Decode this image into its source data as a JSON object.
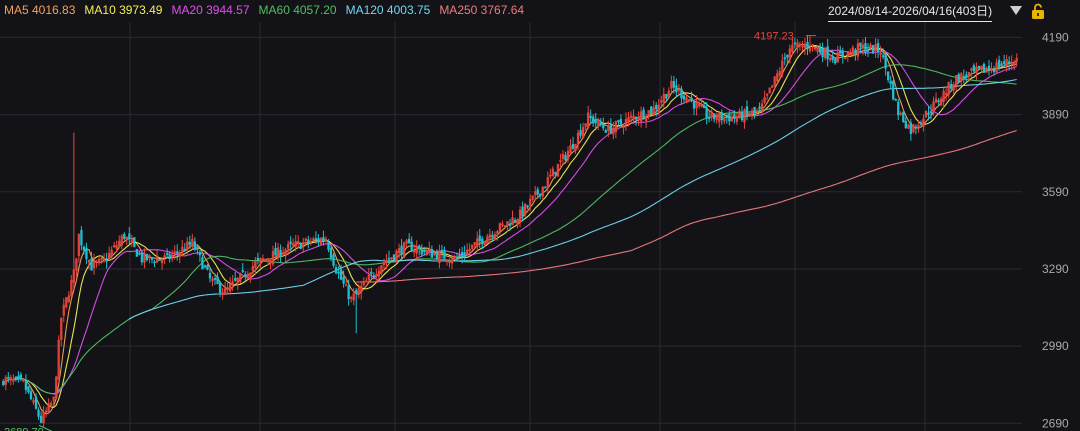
{
  "legend": [
    {
      "label": "MA5",
      "value": "4016.83",
      "color": "#f5a05a"
    },
    {
      "label": "MA10",
      "value": "3973.49",
      "color": "#f2ee5a"
    },
    {
      "label": "MA20",
      "value": "3944.57",
      "color": "#e04ef0"
    },
    {
      "label": "MA60",
      "value": "4057.20",
      "color": "#4fc060"
    },
    {
      "label": "MA120",
      "value": "4003.75",
      "color": "#6fd8f0"
    },
    {
      "label": "MA250",
      "value": "3767.64",
      "color": "#ef7b7f"
    }
  ],
  "range_label": "2024/08/14-2026/04/16(403日)",
  "icons": {
    "dropdown": "chevron-down-icon",
    "lock": "lock-icon"
  },
  "colors": {
    "background": "#131317",
    "up": "#e8453c",
    "down": "#1fbfcf",
    "grid": "#2a2a2f",
    "low_mark": "#4fc060",
    "high_mark": "#e8453c"
  },
  "chart_data": {
    "type": "candlestick",
    "date_range": [
      "2024/08/14",
      "2026/04/16"
    ],
    "trading_days": 403,
    "y_ticks": [
      "4190",
      "3890",
      "3590",
      "3290",
      "2990",
      "2690"
    ],
    "ylim": [
      2660,
      4250
    ],
    "grid": true,
    "low": {
      "value": 2689.7,
      "label": "2689.70",
      "index": 15
    },
    "high": {
      "value": 4197.23,
      "label": "4197.23",
      "index": 320
    },
    "price_anchors": [
      [
        0,
        2860
      ],
      [
        8,
        2845
      ],
      [
        15,
        2700
      ],
      [
        20,
        2780
      ],
      [
        23,
        3100
      ],
      [
        28,
        3270
      ],
      [
        30,
        3420
      ],
      [
        35,
        3300
      ],
      [
        40,
        3320
      ],
      [
        48,
        3420
      ],
      [
        55,
        3330
      ],
      [
        65,
        3330
      ],
      [
        75,
        3390
      ],
      [
        82,
        3250
      ],
      [
        88,
        3200
      ],
      [
        100,
        3310
      ],
      [
        115,
        3380
      ],
      [
        128,
        3410
      ],
      [
        132,
        3290
      ],
      [
        138,
        3170
      ],
      [
        145,
        3250
      ],
      [
        150,
        3310
      ],
      [
        160,
        3380
      ],
      [
        170,
        3350
      ],
      [
        180,
        3330
      ],
      [
        192,
        3420
      ],
      [
        205,
        3500
      ],
      [
        215,
        3620
      ],
      [
        225,
        3760
      ],
      [
        232,
        3880
      ],
      [
        240,
        3830
      ],
      [
        250,
        3880
      ],
      [
        258,
        3910
      ],
      [
        265,
        4000
      ],
      [
        272,
        3950
      ],
      [
        280,
        3880
      ],
      [
        290,
        3880
      ],
      [
        300,
        3900
      ],
      [
        305,
        4000
      ],
      [
        312,
        4150
      ],
      [
        320,
        4160
      ],
      [
        330,
        4110
      ],
      [
        340,
        4150
      ],
      [
        348,
        4140
      ],
      [
        355,
        3900
      ],
      [
        360,
        3830
      ],
      [
        365,
        3880
      ],
      [
        372,
        3960
      ],
      [
        378,
        4030
      ]
    ],
    "ma_start_index": {
      "MA5": 0,
      "MA10": 0,
      "MA20": 0,
      "MA60": 0,
      "MA120": 50,
      "MA250": 140
    }
  }
}
